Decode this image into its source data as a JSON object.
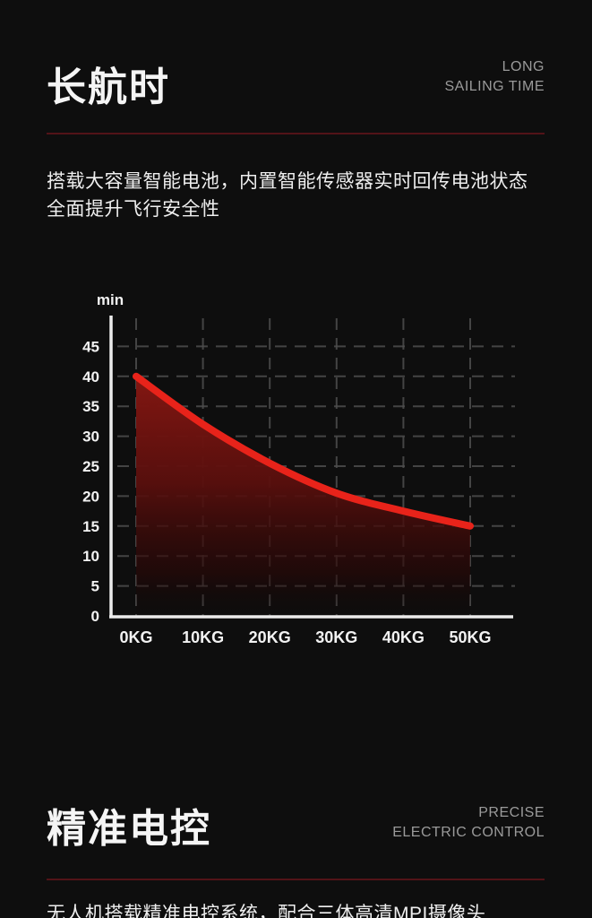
{
  "page": {
    "background": "#0e0e0e",
    "accent_red": "#e8231a",
    "divider_red": "#521318"
  },
  "section_endurance": {
    "title_cn": "长航时",
    "title_en_line1": "LONG",
    "title_en_line2": "SAILING TIME",
    "description_line1": "搭载大容量智能电池，内置智能传感器实时回传电池状态",
    "description_line2": "全面提升飞行安全性"
  },
  "chart_data": {
    "type": "area",
    "title": "",
    "ylabel": "min",
    "xlabel": "",
    "categories": [
      "0KG",
      "10KG",
      "20KG",
      "30KG",
      "40KG",
      "50KG"
    ],
    "x": [
      0,
      10,
      20,
      30,
      40,
      50
    ],
    "values": [
      40,
      32,
      25.5,
      20.5,
      17.5,
      15
    ],
    "yticks": [
      0,
      5,
      10,
      15,
      20,
      25,
      30,
      35,
      40,
      45
    ],
    "ylim": [
      0,
      50
    ],
    "grid": "dashed",
    "legend": "none",
    "line_color": "#e8231a",
    "fill_top_color": "#851712",
    "grid_color": "#4e4e4e",
    "axis_color": "#ececec"
  },
  "section_control": {
    "title_cn": "精准电控",
    "title_en_line1": "PRECISE",
    "title_en_line2": "ELECTRIC CONTROL",
    "description_partial": "无人机搭载精准电控系统，配合三体高清MPI摄像头"
  }
}
